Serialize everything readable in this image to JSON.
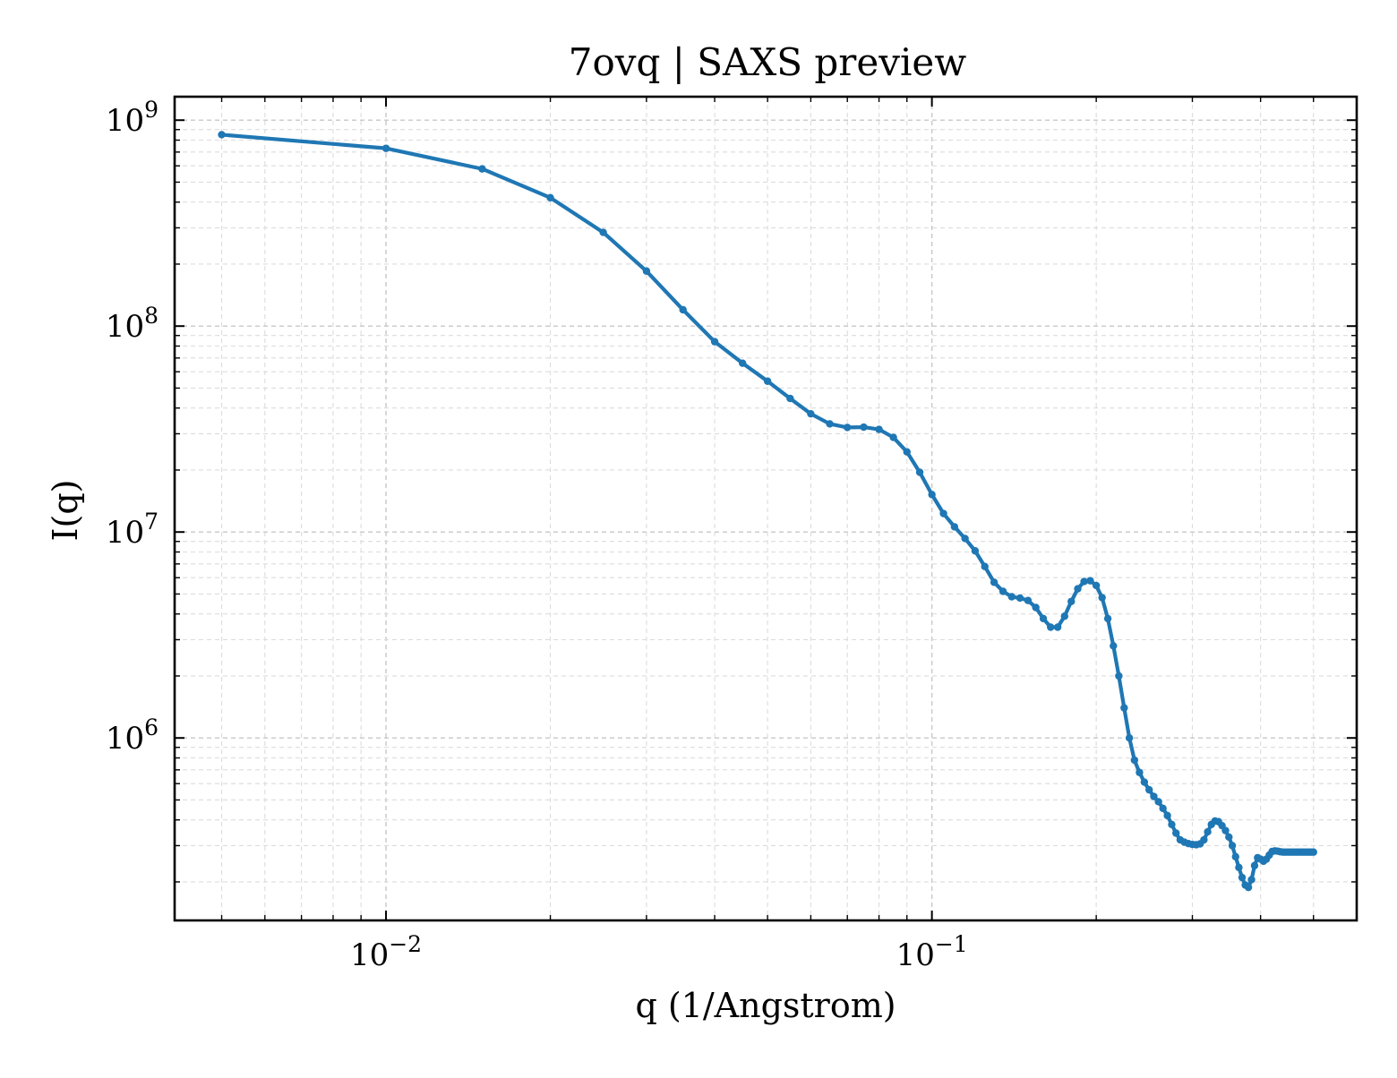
{
  "chart_data": {
    "type": "line",
    "title": "7ovq | SAXS preview",
    "xlabel": "q (1/Angstrom)",
    "ylabel": "I(q)",
    "xscale": "log",
    "yscale": "log",
    "xlim": [
      0.0041,
      0.6
    ],
    "ylim": [
      130000,
      1300000000
    ],
    "grid": true,
    "x_ticks": [
      {
        "base": "10",
        "exp": "−2",
        "value": 0.01
      },
      {
        "base": "10",
        "exp": "−1",
        "value": 0.1
      }
    ],
    "y_ticks": [
      {
        "base": "10",
        "exp": "6",
        "value": 1000000
      },
      {
        "base": "10",
        "exp": "7",
        "value": 10000000
      },
      {
        "base": "10",
        "exp": "8",
        "value": 100000000
      },
      {
        "base": "10",
        "exp": "9",
        "value": 1000000000
      }
    ],
    "series_color": "#1f77b4",
    "series": [
      {
        "x": [
          0.005,
          0.01,
          0.015,
          0.02,
          0.025,
          0.03,
          0.035,
          0.04,
          0.045,
          0.05,
          0.055,
          0.06,
          0.065,
          0.07,
          0.075,
          0.08,
          0.085,
          0.09,
          0.095,
          0.1,
          0.105,
          0.11,
          0.115,
          0.12,
          0.125,
          0.13,
          0.135,
          0.14,
          0.145,
          0.15,
          0.155,
          0.16,
          0.165,
          0.17,
          0.175,
          0.18,
          0.185,
          0.19,
          0.195,
          0.2,
          0.205,
          0.21,
          0.215,
          0.22,
          0.225,
          0.23,
          0.235,
          0.24,
          0.245,
          0.25,
          0.255,
          0.26,
          0.265,
          0.27,
          0.275,
          0.28,
          0.285,
          0.29,
          0.295,
          0.3,
          0.305,
          0.31,
          0.315,
          0.32,
          0.325,
          0.33,
          0.335,
          0.34,
          0.345,
          0.35,
          0.355,
          0.36,
          0.365,
          0.37,
          0.375,
          0.38,
          0.385,
          0.39,
          0.395,
          0.4,
          0.405,
          0.41,
          0.415,
          0.42,
          0.425,
          0.43,
          0.435,
          0.44,
          0.445,
          0.45,
          0.455,
          0.46,
          0.465,
          0.47,
          0.475,
          0.48,
          0.485,
          0.49,
          0.495,
          0.5
        ],
        "y": [
          850000000,
          730000000,
          580000000,
          420000000,
          285000000,
          185000000,
          120000000,
          84000000,
          66000000,
          54000000,
          44500000,
          37500000,
          33500000,
          32200000,
          32300000,
          31500000,
          28800000,
          24500000,
          19500000,
          15200000,
          12300000,
          10600000,
          9300000,
          8100000,
          6800000,
          5700000,
          5150000,
          4850000,
          4780000,
          4650000,
          4300000,
          3800000,
          3450000,
          3450000,
          3900000,
          4600000,
          5300000,
          5750000,
          5800000,
          5500000,
          4800000,
          3800000,
          2800000,
          2000000,
          1400000,
          1000000,
          780000,
          680000,
          610000,
          560000,
          520000,
          490000,
          455000,
          420000,
          380000,
          345000,
          320000,
          312000,
          307000,
          304000,
          303000,
          306000,
          320000,
          350000,
          380000,
          395000,
          392000,
          375000,
          355000,
          330000,
          300000,
          265000,
          235000,
          210000,
          193000,
          188000,
          205000,
          240000,
          262000,
          258000,
          252000,
          258000,
          270000,
          281000,
          283000,
          282000,
          280000,
          279000,
          279000,
          279000,
          279000,
          279000,
          279000,
          279000,
          279000,
          279000,
          279000,
          279000,
          279000,
          279000
        ]
      }
    ]
  }
}
